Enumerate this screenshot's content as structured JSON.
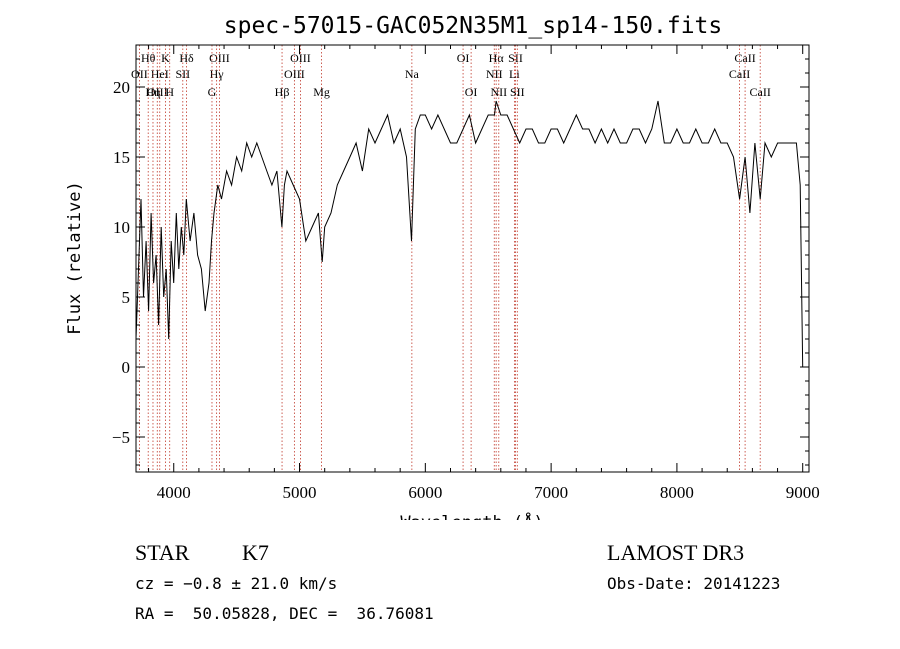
{
  "chart_data": {
    "type": "line",
    "title": "spec-57015-GAC052N35M1_sp14-150.fits",
    "xlabel": "Wavelength (Å)",
    "ylabel": "Flux (relative)",
    "xlim": [
      3700,
      9050
    ],
    "ylim": [
      -7.5,
      23
    ],
    "xticks": [
      4000,
      5000,
      6000,
      7000,
      8000,
      9000
    ],
    "yticks": [
      -5,
      0,
      5,
      10,
      15,
      20
    ],
    "grid": false,
    "series": [
      {
        "x": [
          3700,
          3720,
          3740,
          3760,
          3780,
          3800,
          3820,
          3840,
          3860,
          3880,
          3900,
          3920,
          3940,
          3960,
          3980,
          4000,
          4020,
          4040,
          4060,
          4080,
          4100,
          4130,
          4160,
          4190,
          4220,
          4250,
          4280,
          4300,
          4320,
          4350,
          4380,
          4420,
          4460,
          4500,
          4540,
          4580,
          4620,
          4660,
          4700,
          4740,
          4780,
          4820,
          4860,
          4880,
          4900,
          4950,
          5000,
          5050,
          5100,
          5150,
          5180,
          5200,
          5250,
          5300,
          5350,
          5400,
          5450,
          5500,
          5550,
          5600,
          5650,
          5700,
          5750,
          5800,
          5850,
          5890,
          5920,
          5960,
          6000,
          6050,
          6100,
          6150,
          6200,
          6250,
          6300,
          6350,
          6400,
          6450,
          6500,
          6550,
          6563,
          6600,
          6650,
          6700,
          6750,
          6800,
          6850,
          6900,
          6950,
          7000,
          7050,
          7100,
          7150,
          7200,
          7250,
          7300,
          7350,
          7400,
          7450,
          7500,
          7550,
          7600,
          7650,
          7700,
          7750,
          7800,
          7850,
          7900,
          7950,
          8000,
          8050,
          8100,
          8150,
          8200,
          8250,
          8300,
          8350,
          8400,
          8450,
          8498,
          8542,
          8580,
          8620,
          8662,
          8700,
          8750,
          8800,
          8850,
          8900,
          8950,
          8980,
          9000
        ],
        "y": [
          2,
          7,
          12,
          5,
          9,
          4,
          11,
          6,
          8,
          3,
          10,
          5,
          7,
          2,
          9,
          6,
          11,
          7,
          10,
          8,
          12,
          9,
          11,
          8,
          7,
          4,
          6,
          9,
          11,
          13,
          12,
          14,
          13,
          15,
          14,
          16,
          15,
          16,
          15,
          14,
          13,
          14,
          10,
          13,
          14,
          13,
          12,
          9,
          10,
          11,
          7.5,
          10,
          11,
          13,
          14,
          15,
          16,
          14,
          17,
          16,
          17,
          18,
          16,
          17,
          15,
          9,
          17,
          18,
          18,
          17,
          18,
          17,
          16,
          16,
          17,
          18,
          16,
          17,
          18,
          18,
          19,
          18,
          18,
          17,
          16,
          17,
          17,
          16,
          16,
          17,
          17,
          16,
          17,
          18,
          17,
          17,
          16,
          17,
          16,
          17,
          16,
          16,
          17,
          17,
          16,
          17,
          19,
          16,
          16,
          17,
          16,
          16,
          17,
          16,
          16,
          17,
          16,
          16,
          15,
          12,
          15,
          11,
          16,
          12,
          16,
          15,
          16,
          16,
          16,
          16,
          13,
          0
        ]
      }
    ],
    "lines": [
      {
        "name": "Hθ",
        "x": 3797,
        "row": 1
      },
      {
        "name": "OII",
        "x": 3727,
        "row": 2
      },
      {
        "name": "OIII",
        "x": 3869,
        "row": 3
      },
      {
        "name": "K",
        "x": 3934,
        "row": 1
      },
      {
        "name": "HeI",
        "x": 3889,
        "row": 2
      },
      {
        "name": "Hη",
        "x": 3835,
        "row": 3
      },
      {
        "name": "H",
        "x": 3968,
        "row": 3
      },
      {
        "name": "SII",
        "x": 4072,
        "row": 2
      },
      {
        "name": "Hδ",
        "x": 4102,
        "row": 1
      },
      {
        "name": "OIII",
        "x": 4363,
        "row": 1
      },
      {
        "name": "Hγ",
        "x": 4341,
        "row": 2
      },
      {
        "name": "G",
        "x": 4304,
        "row": 3
      },
      {
        "name": "Hβ",
        "x": 4861,
        "row": 3
      },
      {
        "name": "OIII",
        "x": 5007,
        "row": 1
      },
      {
        "name": "OIII",
        "x": 4959,
        "row": 2
      },
      {
        "name": "Mg",
        "x": 5175,
        "row": 3
      },
      {
        "name": "Na",
        "x": 5893,
        "row": 2
      },
      {
        "name": "OI",
        "x": 6300,
        "row": 1
      },
      {
        "name": "OI",
        "x": 6364,
        "row": 3
      },
      {
        "name": "Hα",
        "x": 6563,
        "row": 1
      },
      {
        "name": "SII",
        "x": 6717,
        "row": 1
      },
      {
        "name": "NII",
        "x": 6548,
        "row": 2
      },
      {
        "name": "Li",
        "x": 6708,
        "row": 2
      },
      {
        "name": "NII",
        "x": 6584,
        "row": 3
      },
      {
        "name": "SII",
        "x": 6731,
        "row": 3
      },
      {
        "name": "CaII",
        "x": 8542,
        "row": 1
      },
      {
        "name": "CaII",
        "x": 8498,
        "row": 2
      },
      {
        "name": "CaII",
        "x": 8662,
        "row": 3
      }
    ]
  },
  "info": {
    "class": "STAR",
    "subclass": "K7",
    "survey": "LAMOST DR3",
    "cz": "cz = −0.8 ± 21.0 km/s",
    "obs_date": "Obs-Date: 20141223",
    "radec": "RA =  50.05828, DEC =  36.76081"
  }
}
